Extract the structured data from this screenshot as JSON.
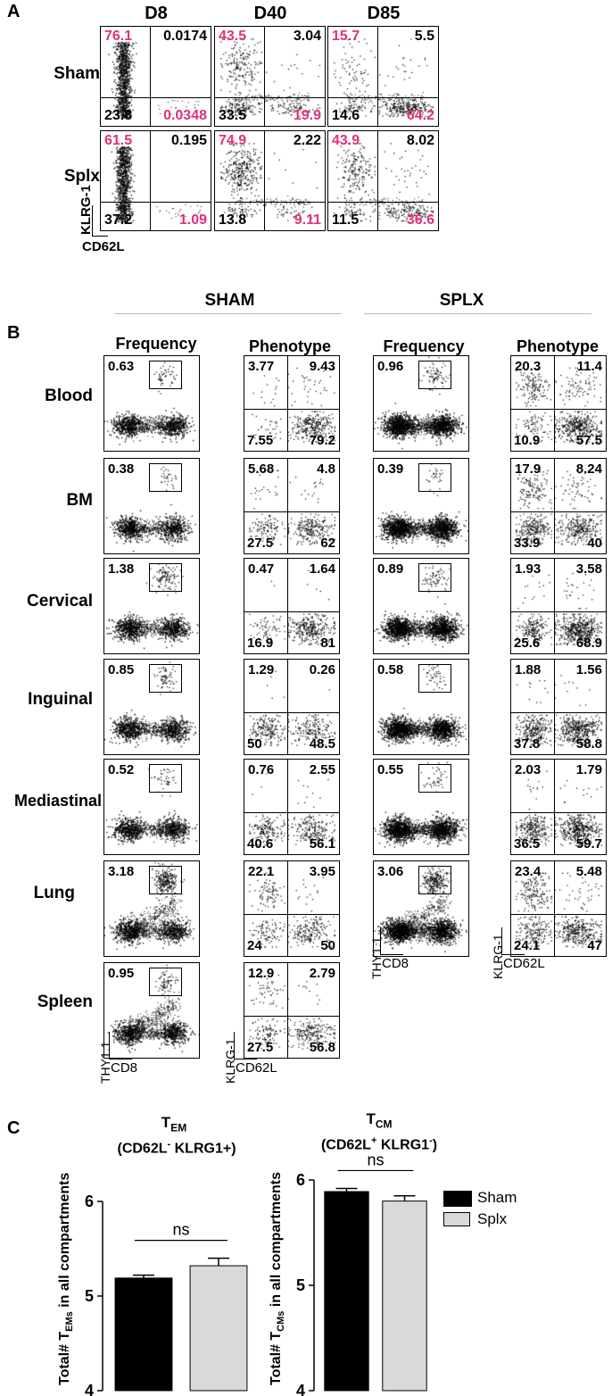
{
  "panel_labels": {
    "a": "A",
    "b": "B",
    "c": "C"
  },
  "panel_a": {
    "days": [
      "D8",
      "D40",
      "D85"
    ],
    "rows": [
      "Sham",
      "Splx"
    ],
    "axes": {
      "y": "KLRG-1",
      "x": "CD62L"
    },
    "colors": {
      "pink": "#e0317a",
      "black": "#000000"
    },
    "plots": [
      {
        "tl": "76.1",
        "tr": "0.0174",
        "bl": "23.8",
        "br": "0.0348"
      },
      {
        "tl": "43.5",
        "tr": "3.04",
        "bl": "33.5",
        "br": "19.9"
      },
      {
        "tl": "15.7",
        "tr": "5.5",
        "bl": "14.6",
        "br": "64.2"
      },
      {
        "tl": "61.5",
        "tr": "0.195",
        "bl": "37.2",
        "br": "1.09"
      },
      {
        "tl": "74.9",
        "tr": "2.22",
        "bl": "13.8",
        "br": "9.11"
      },
      {
        "tl": "43.9",
        "tr": "8.02",
        "bl": "11.5",
        "br": "36.6"
      }
    ]
  },
  "panel_b": {
    "groups": [
      "SHAM",
      "SPLX"
    ],
    "col_headers": [
      "Frequency",
      "Phenotype",
      "Frequency",
      "Phenotype"
    ],
    "tissues": [
      "Blood",
      "BM",
      "Cervical",
      "Inguinal",
      "Mediastinal",
      "Lung",
      "Spleen"
    ],
    "freq_axes": {
      "y": "THY1.1",
      "x": "CD8"
    },
    "pheno_axes": {
      "y": "KLRG-1",
      "x": "CD62L"
    },
    "sham": [
      {
        "freq": "0.63",
        "tl": "3.77",
        "tr": "9.43",
        "bl": "7.55",
        "br": "79.2"
      },
      {
        "freq": "0.38",
        "tl": "5.68",
        "tr": "4.8",
        "bl": "27.5",
        "br": "62"
      },
      {
        "freq": "1.38",
        "tl": "0.47",
        "tr": "1.64",
        "bl": "16.9",
        "br": "81"
      },
      {
        "freq": "0.85",
        "tl": "1.29",
        "tr": "0.26",
        "bl": "50",
        "br": "48.5"
      },
      {
        "freq": "0.52",
        "tl": "0.76",
        "tr": "2.55",
        "bl": "40.6",
        "br": "56.1"
      },
      {
        "freq": "3.18",
        "tl": "22.1",
        "tr": "3.95",
        "bl": "24",
        "br": "50"
      },
      {
        "freq": "0.95",
        "tl": "12.9",
        "tr": "2.79",
        "bl": "27.5",
        "br": "56.8"
      }
    ],
    "splx": [
      {
        "freq": "0.96",
        "tl": "20.3",
        "tr": "11.4",
        "bl": "10.9",
        "br": "57.5"
      },
      {
        "freq": "0.39",
        "tl": "17.9",
        "tr": "8.24",
        "bl": "33.9",
        "br": "40"
      },
      {
        "freq": "0.89",
        "tl": "1.93",
        "tr": "3.58",
        "bl": "25.6",
        "br": "68.9"
      },
      {
        "freq": "0.58",
        "tl": "1.88",
        "tr": "1.56",
        "bl": "37.8",
        "br": "58.8"
      },
      {
        "freq": "0.55",
        "tl": "2.03",
        "tr": "1.79",
        "bl": "36.5",
        "br": "59.7"
      },
      {
        "freq": "3.06",
        "tl": "23.4",
        "tr": "5.48",
        "bl": "24.1",
        "br": "47"
      }
    ]
  },
  "chart_data": [
    {
      "type": "bar",
      "title": "TEM (CD62L- KLRG1+)",
      "title_main": "T",
      "title_sub": "EM",
      "subtitle_a": "(CD62L",
      "subtitle_sup": "-",
      "subtitle_b": " KLRG1+)",
      "ylabel": "Total# TEMs in all compartments",
      "ylabel_a": "Total# T",
      "ylabel_sub": "EMs",
      "ylabel_b": " in all compartments",
      "ylim": [
        4,
        6
      ],
      "yticks": [
        "4",
        "5",
        "6"
      ],
      "categories": [
        "Sham",
        "Splx"
      ],
      "values": [
        5.19,
        5.32
      ],
      "errors": [
        0.03,
        0.08
      ],
      "significance": "ns",
      "colors": [
        "#000000",
        "#d9d9d9"
      ]
    },
    {
      "type": "bar",
      "title": "TCM (CD62L+ KLRG1-)",
      "title_main": "T",
      "title_sub": "CM",
      "subtitle_a": "(CD62L",
      "subtitle_sup": "+",
      "subtitle_b": " KLRG1",
      "subtitle_sup2": "-",
      "subtitle_c": ")",
      "ylabel": "Total# TCMs in all compartments",
      "ylabel_a": "Total# T",
      "ylabel_sub": "CMs",
      "ylabel_b": " in all compartments",
      "ylim": [
        4,
        6
      ],
      "yticks": [
        "4",
        "5",
        "6"
      ],
      "categories": [
        "Sham",
        "Splx"
      ],
      "values": [
        5.89,
        5.8
      ],
      "errors": [
        0.03,
        0.05
      ],
      "significance": "ns",
      "colors": [
        "#000000",
        "#d9d9d9"
      ]
    }
  ],
  "legend": [
    {
      "label": "Sham",
      "color": "#000000"
    },
    {
      "label": "Splx",
      "color": "#d9d9d9"
    }
  ]
}
